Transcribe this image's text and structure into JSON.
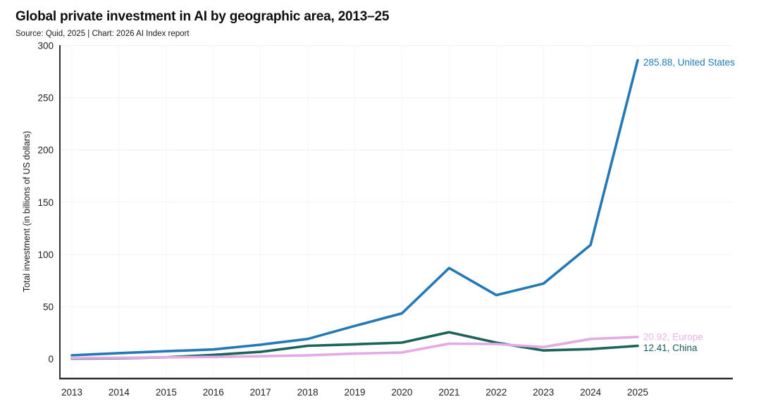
{
  "header": {
    "title": "Global private investment in AI by geographic area, 2013–25",
    "subtitle": "Source: Quid, 2025 | Chart: 2026 AI Index report"
  },
  "chart_data": {
    "type": "line",
    "title": "Global private investment in AI by geographic area, 2013–25",
    "subtitle": "Source: Quid, 2025 | Chart: 2026 AI Index report",
    "x": [
      2013,
      2014,
      2015,
      2016,
      2017,
      2018,
      2019,
      2020,
      2021,
      2022,
      2023,
      2024,
      2025
    ],
    "xlabel": "",
    "ylabel": "Total investment (in billions of US dollars)",
    "ylim": [
      0,
      300
    ],
    "yticks": [
      0,
      50,
      100,
      150,
      200,
      250,
      300
    ],
    "grid": true,
    "legend_position": "line-end-labels",
    "series": [
      {
        "name": "China",
        "color": "#1b635b",
        "label_color": "#155f58",
        "end_label": "12.41, China",
        "end_value": 12.41,
        "values": [
          0.3,
          0.6,
          1.5,
          3.8,
          6.7,
          12.5,
          13.9,
          15.5,
          25.5,
          15.5,
          8.0,
          9.3,
          12.41
        ]
      },
      {
        "name": "Europe",
        "color": "#e4aae6",
        "label_color": "#e9b4ea",
        "end_label": "20.92, Europe",
        "end_value": 20.92,
        "values": [
          0.7,
          1.0,
          1.5,
          1.8,
          2.5,
          3.3,
          5.0,
          6.1,
          14.5,
          14.2,
          11.3,
          19.0,
          20.92
        ]
      },
      {
        "name": "United States",
        "color": "#2379b6",
        "label_color": "#1f7cb8",
        "end_label": "285.88, United States",
        "end_value": 285.88,
        "values": [
          3.4,
          5.5,
          7.3,
          9.0,
          13.5,
          19.0,
          31.5,
          43.5,
          86.9,
          61.0,
          72.0,
          109.0,
          285.88
        ]
      }
    ],
    "axis_color": "#2f2f2f",
    "grid_color_h": "#f1f1f1",
    "grid_color_v": "#f6f6f6",
    "tick_color": "#1f1f1f"
  }
}
